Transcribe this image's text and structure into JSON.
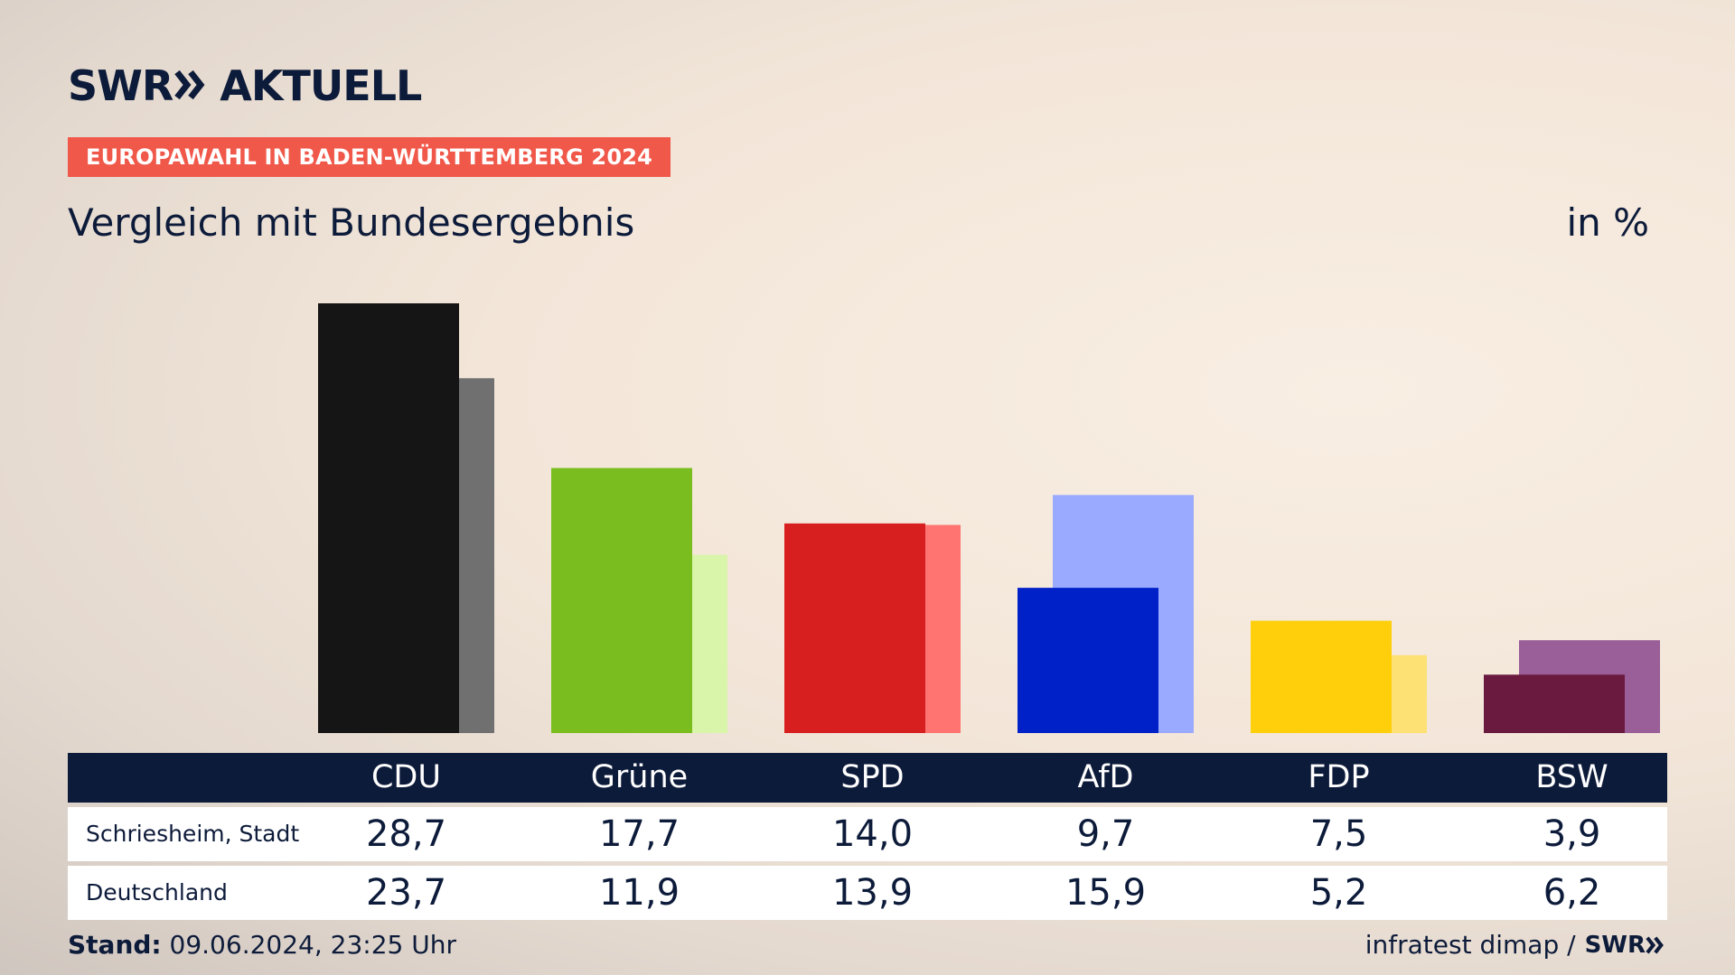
{
  "header": {
    "logo_text_left": "SWR",
    "logo_text_right": "AKTUELL",
    "tag": "EUROPAWAHL IN BADEN-WÜRTTEMBERG 2024",
    "title": "Vergleich mit Bundesergebnis",
    "unit": "in %"
  },
  "chart_data": {
    "type": "bar",
    "categories": [
      "CDU",
      "Grüne",
      "SPD",
      "AfD",
      "FDP",
      "BSW"
    ],
    "series": [
      {
        "name": "Schriesheim, Stadt",
        "values": [
          28.7,
          17.7,
          14.0,
          9.7,
          7.5,
          3.9
        ],
        "display": [
          "28,7",
          "17,7",
          "14,0",
          "9,7",
          "7,5",
          "3,9"
        ]
      },
      {
        "name": "Deutschland",
        "values": [
          23.7,
          11.9,
          13.9,
          15.9,
          5.2,
          6.2
        ],
        "display": [
          "23,7",
          "11,9",
          "13,9",
          "15,9",
          "5,2",
          "6,2"
        ]
      }
    ],
    "colors_primary": [
      "#151515",
      "#79bd1f",
      "#d81f1f",
      "#0021c8",
      "#ffcf0b",
      "#6b1a3f"
    ],
    "colors_secondary": [
      "#707070",
      "#d8f5a9",
      "#ff7370",
      "#9aabff",
      "#fee174",
      "#9a5e98"
    ],
    "ylim": [
      0,
      28.7
    ]
  },
  "footer": {
    "stand_label": "Stand:",
    "stand_value": "09.06.2024, 23:25 Uhr",
    "source": "infratest dimap /",
    "source_logo": "SWR"
  }
}
